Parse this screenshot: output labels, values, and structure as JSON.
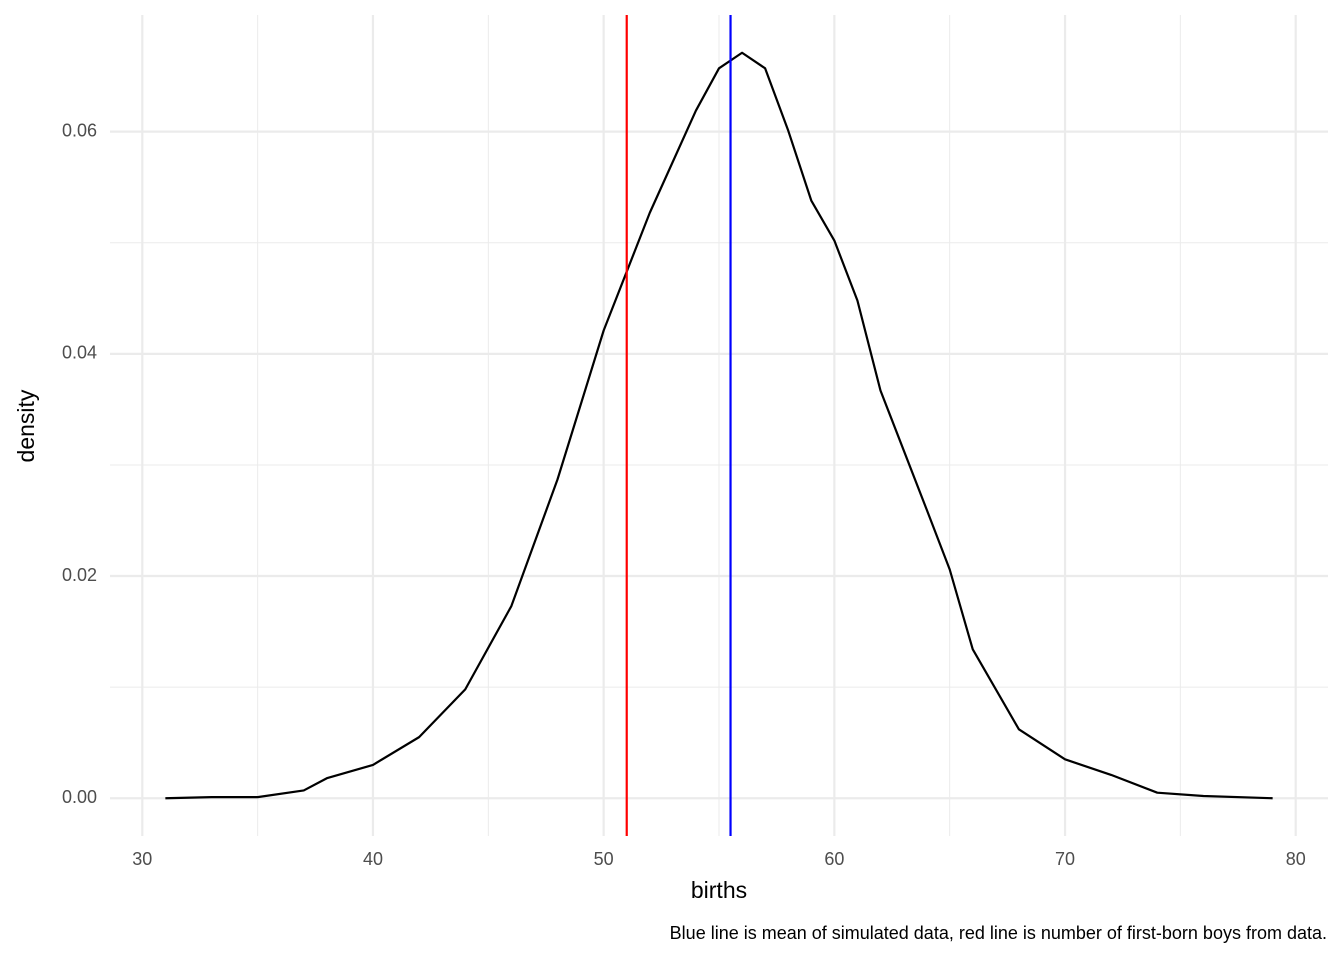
{
  "chart_data": {
    "type": "line",
    "x_label": "births",
    "y_label": "density",
    "caption": "Blue line is mean of simulated data, red line is number of first-born boys from data.",
    "series": [
      {
        "color": "#000000",
        "x": [
          31,
          33,
          35,
          37,
          38,
          40,
          42,
          44,
          46,
          48,
          50,
          52,
          54,
          55,
          56,
          57,
          58,
          59,
          60,
          61,
          62,
          64,
          65,
          66,
          68,
          70,
          72,
          74,
          76,
          79
        ],
        "values": [
          0.0,
          0.0001,
          0.0001,
          0.0007,
          0.0018,
          0.003,
          0.0055,
          0.0098,
          0.0173,
          0.0287,
          0.0421,
          0.0527,
          0.0619,
          0.0657,
          0.0671,
          0.0657,
          0.0601,
          0.0538,
          0.0502,
          0.0448,
          0.0367,
          0.026,
          0.0206,
          0.0134,
          0.0062,
          0.0035,
          0.0021,
          0.0005,
          0.0002,
          0.0
        ]
      }
    ],
    "vlines": [
      {
        "value": 51,
        "color": "#ff0000"
      },
      {
        "value": 55.5,
        "color": "#0000ff"
      }
    ],
    "xlim": [
      28.6,
      81.4
    ],
    "ylim": [
      -0.0034,
      0.0705
    ],
    "xticks": [
      30,
      40,
      50,
      60,
      70,
      80
    ],
    "x_minor_ticks": [
      35,
      45,
      55,
      65,
      75
    ],
    "yticks": [
      {
        "value": 0,
        "label": "0.00"
      },
      {
        "value": 0.02,
        "label": "0.02"
      },
      {
        "value": 0.04,
        "label": "0.04"
      },
      {
        "value": 0.06,
        "label": "0.06"
      }
    ],
    "y_minor_ticks": [
      0.01,
      0.03,
      0.05
    ],
    "grid": true
  }
}
